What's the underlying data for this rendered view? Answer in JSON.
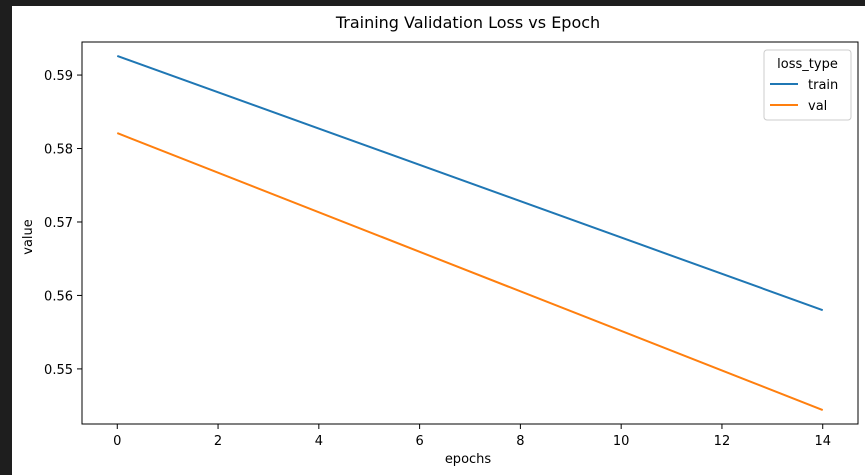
{
  "chart_data": {
    "type": "line",
    "title": "Training Validation Loss vs Epoch",
    "xlabel": "epochs",
    "ylabel": "value",
    "xlim": [
      -0.7,
      14.7
    ],
    "ylim": [
      0.5425,
      0.5945
    ],
    "xticks": [
      0,
      2,
      4,
      6,
      8,
      10,
      12,
      14
    ],
    "yticks": [
      0.55,
      0.56,
      0.57,
      0.58,
      0.59
    ],
    "grid": false,
    "legend": {
      "title": "loss_type",
      "position": "top-right"
    },
    "series": [
      {
        "name": "train",
        "color": "#1f77b4",
        "x": [
          0,
          14
        ],
        "y": [
          0.5926,
          0.558
        ]
      },
      {
        "name": "val",
        "color": "#ff7f0e",
        "x": [
          0,
          14
        ],
        "y": [
          0.5821,
          0.5444
        ]
      }
    ]
  }
}
